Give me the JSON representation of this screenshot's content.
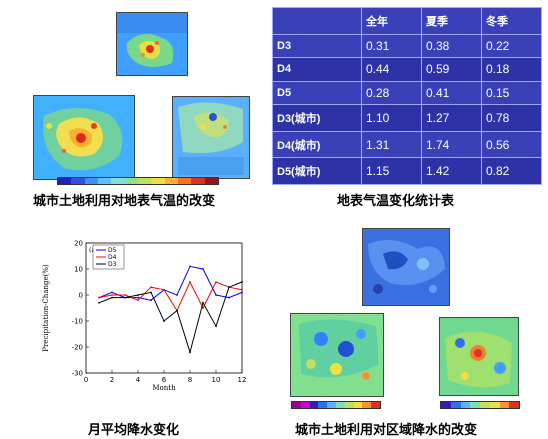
{
  "captions": {
    "top_left": "城市土地利用对地表气温的改变",
    "top_right": "地表气温变化统计表",
    "bottom_left": "月平均降水变化",
    "bottom_right": "城市土地利用对区域降水的改变"
  },
  "stats_table": {
    "headers": [
      "",
      "全年",
      "夏季",
      "冬季"
    ],
    "rows": [
      {
        "label": "D3",
        "values": [
          "0.31",
          "0.38",
          "0.22"
        ]
      },
      {
        "label": "D4",
        "values": [
          "0.44",
          "0.59",
          "0.18"
        ]
      },
      {
        "label": "D5",
        "values": [
          "0.28",
          "0.41",
          "0.15"
        ]
      },
      {
        "label": "D3(城市)",
        "values": [
          "1.10",
          "1.27",
          "0.78"
        ]
      },
      {
        "label": "D4(城市)",
        "values": [
          "1.31",
          "1.74",
          "0.56"
        ]
      },
      {
        "label": "D5(城市)",
        "values": [
          "1.15",
          "1.42",
          "0.82"
        ]
      }
    ]
  },
  "colors": {
    "table_bg": "#3a40b8",
    "d5": "#0000ff",
    "d4": "#ff0000",
    "d3": "#000000"
  },
  "chart_data": {
    "type": "line",
    "panel_label": "(a)",
    "xlabel": "Month",
    "ylabel": "Precipitation-Change(%)",
    "xlim": [
      0,
      12
    ],
    "ylim": [
      -30,
      20
    ],
    "xticks": [
      0,
      2,
      4,
      6,
      8,
      10,
      12
    ],
    "yticks": [
      20,
      10,
      0,
      -10,
      -20,
      -30
    ],
    "x": [
      1,
      2,
      3,
      4,
      5,
      6,
      7,
      8,
      9,
      10,
      11,
      12
    ],
    "series": [
      {
        "name": "D5",
        "color": "#0000ff",
        "values": [
          -1,
          1,
          -1,
          -1,
          -2,
          2,
          0,
          11,
          10,
          0,
          -1,
          1
        ]
      },
      {
        "name": "D4",
        "color": "#ff0000",
        "values": [
          -1,
          0,
          0,
          -2,
          3,
          2,
          -6,
          5,
          -5,
          5,
          3,
          2
        ]
      },
      {
        "name": "D3",
        "color": "#000000",
        "values": [
          -3,
          -1,
          -1,
          0,
          1,
          -10,
          -6,
          -22,
          -3,
          -12,
          3,
          5
        ]
      }
    ]
  }
}
